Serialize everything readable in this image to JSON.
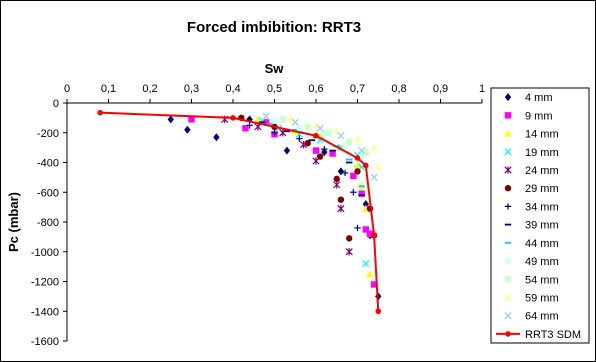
{
  "chart_data": {
    "type": "scatter",
    "title": "Forced imbibition: RRT3",
    "xlabel": "Sw",
    "ylabel": "Pc (mbar)",
    "xlim": [
      0,
      1
    ],
    "ylim": [
      -1600,
      0
    ],
    "x_ticks": [
      "0",
      "0,1",
      "0,2",
      "0,3",
      "0,4",
      "0,5",
      "0,6",
      "0,7",
      "0,8",
      "0,9",
      "1"
    ],
    "y_ticks": [
      "0",
      "-200",
      "-400",
      "-600",
      "-800",
      "-1000",
      "-1200",
      "-1400",
      "-1600"
    ],
    "x_axis_position": "top",
    "grid": false,
    "legend": "right",
    "series": [
      {
        "name": "4 mm",
        "color": "#000080",
        "marker": "diamond",
        "x": [
          0.25,
          0.29,
          0.36,
          0.44,
          0.53,
          0.62,
          0.66,
          0.7,
          0.72,
          0.73,
          0.75
        ],
        "y": [
          -110,
          -180,
          -230,
          -110,
          -320,
          -330,
          -460,
          -430,
          -680,
          -890,
          -1300
        ]
      },
      {
        "name": "9 mm",
        "color": "#ff00ff",
        "marker": "square",
        "x": [
          0.3,
          0.43,
          0.48,
          0.5,
          0.6,
          0.64,
          0.69,
          0.71,
          0.72,
          0.73,
          0.74
        ],
        "y": [
          -110,
          -170,
          -130,
          -210,
          -320,
          -340,
          -490,
          -610,
          -850,
          -880,
          -1220
        ]
      },
      {
        "name": "14 mm",
        "color": "#ffff00",
        "marker": "triangle",
        "x": [
          0.46,
          0.5,
          0.55,
          0.61,
          0.66,
          0.7,
          0.71,
          0.72,
          0.73
        ],
        "y": [
          -110,
          -150,
          -190,
          -220,
          -300,
          -420,
          -560,
          -710,
          -1150
        ]
      },
      {
        "name": "19 mm",
        "color": "#00ffff",
        "marker": "x",
        "x": [
          0.47,
          0.51,
          0.56,
          0.61,
          0.66,
          0.7,
          0.71,
          0.72
        ],
        "y": [
          -120,
          -170,
          -210,
          -250,
          -300,
          -350,
          -430,
          -1080
        ]
      },
      {
        "name": "24 mm",
        "color": "#800080",
        "marker": "star",
        "x": [
          0.38,
          0.46,
          0.52,
          0.57,
          0.6,
          0.65,
          0.66,
          0.68
        ],
        "y": [
          -110,
          -160,
          -200,
          -280,
          -390,
          -550,
          -710,
          -1000
        ]
      },
      {
        "name": "29 mm",
        "color": "#800000",
        "marker": "circle",
        "x": [
          0.42,
          0.5,
          0.58,
          0.61,
          0.65,
          0.66,
          0.68,
          0.7,
          0.73,
          0.74
        ],
        "y": [
          -100,
          -160,
          -270,
          -360,
          -510,
          -650,
          -910,
          -460,
          -710,
          -890
        ]
      },
      {
        "name": "34 mm",
        "color": "#000080",
        "marker": "plus",
        "x": [
          0.44,
          0.5,
          0.56,
          0.62,
          0.67,
          0.69,
          0.7
        ],
        "y": [
          -150,
          -200,
          -240,
          -310,
          -470,
          -600,
          -840
        ]
      },
      {
        "name": "39 mm",
        "color": "#000080",
        "marker": "dash",
        "x": [
          0.47,
          0.53,
          0.59,
          0.64,
          0.68,
          0.71
        ],
        "y": [
          -130,
          -190,
          -250,
          -320,
          -400,
          -620
        ]
      },
      {
        "name": "44 mm",
        "color": "#00ccff",
        "marker": "dash",
        "x": [
          0.49,
          0.55,
          0.6,
          0.65,
          0.68,
          0.71
        ],
        "y": [
          -140,
          -180,
          -230,
          -290,
          -380,
          -560
        ]
      },
      {
        "name": "49 mm",
        "color": "#ccffff",
        "marker": "circle",
        "x": [
          0.5,
          0.56,
          0.62,
          0.67,
          0.71
        ],
        "y": [
          -120,
          -170,
          -210,
          -280,
          -360
        ]
      },
      {
        "name": "54 mm",
        "color": "#ccffcc",
        "marker": "square",
        "x": [
          0.52,
          0.58,
          0.63,
          0.68,
          0.72
        ],
        "y": [
          -110,
          -160,
          -200,
          -260,
          -330
        ]
      },
      {
        "name": "59 mm",
        "color": "#ffff99",
        "marker": "triangle",
        "x": [
          0.54,
          0.6,
          0.65,
          0.7,
          0.74,
          0.75
        ],
        "y": [
          -100,
          -150,
          -190,
          -240,
          -300,
          -430
        ]
      },
      {
        "name": "64 mm",
        "color": "#99ccff",
        "marker": "x",
        "x": [
          0.48,
          0.55,
          0.61,
          0.66,
          0.71,
          0.74
        ],
        "y": [
          -90,
          -130,
          -170,
          -220,
          -320,
          -500
        ]
      },
      {
        "name": "RRT3 SDM",
        "color": "#ff0000",
        "marker": "circle",
        "line": true,
        "x": [
          0.08,
          0.4,
          0.6,
          0.7,
          0.72,
          0.74,
          0.75
        ],
        "y": [
          -65,
          -100,
          -220,
          -370,
          -420,
          -890,
          -1400
        ]
      }
    ]
  }
}
